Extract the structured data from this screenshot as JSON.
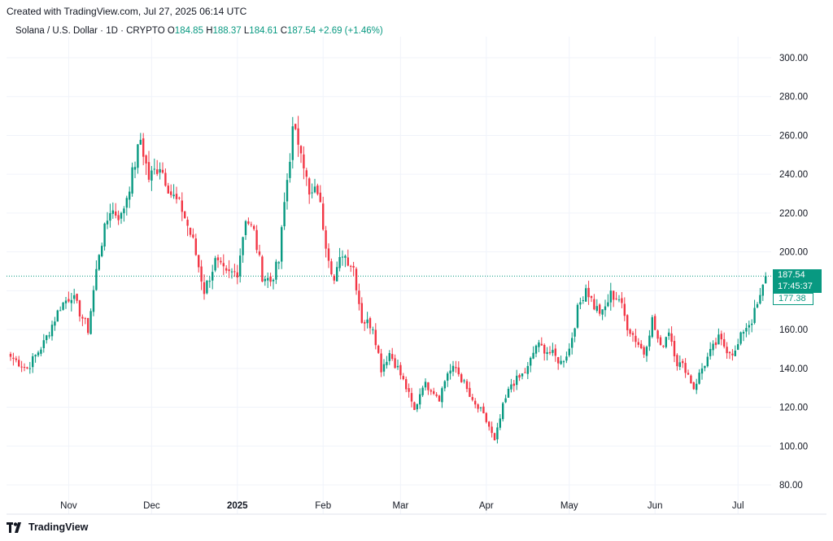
{
  "header": {
    "created_text": "Created with TradingView.com, Jul 27, 2025 06:14 UTC"
  },
  "legend": {
    "symbol": "Solana / U.S. Dollar · 1D · CRYPTO",
    "o_label": "O",
    "o_value": "184.85",
    "h_label": "H",
    "h_value": "188.37",
    "l_label": "L",
    "l_value": "184.61",
    "c_label": "C",
    "c_value": "187.54",
    "change": "+2.69 (+1.46%)"
  },
  "price_label": {
    "price": "187.54",
    "countdown": "17:45:37",
    "secondary": "177.38"
  },
  "footer": {
    "brand": "TradingView"
  },
  "colors": {
    "up": "#089981",
    "down": "#f23645",
    "grid": "#f0f3fa",
    "text": "#131722"
  },
  "chart_data": {
    "type": "candlestick",
    "xlabel": "",
    "ylabel": "",
    "ylim": [
      80,
      300
    ],
    "yticks": [
      "300.00",
      "280.00",
      "260.00",
      "240.00",
      "220.00",
      "200.00",
      "180.00",
      "160.00",
      "140.00",
      "120.00",
      "100.00",
      "80.00"
    ],
    "xticks": [
      {
        "label": "Nov",
        "index": 21,
        "bold": false
      },
      {
        "label": "Dec",
        "index": 51,
        "bold": false
      },
      {
        "label": "2025",
        "index": 82,
        "bold": true
      },
      {
        "label": "Feb",
        "index": 113,
        "bold": false
      },
      {
        "label": "Mar",
        "index": 141,
        "bold": false
      },
      {
        "label": "Apr",
        "index": 172,
        "bold": false
      },
      {
        "label": "May",
        "index": 202,
        "bold": false
      },
      {
        "label": "Jun",
        "index": 233,
        "bold": false
      },
      {
        "label": "Jul",
        "index": 263,
        "bold": false
      }
    ],
    "last_price": 187.54,
    "grid": true,
    "anchors": [
      [
        0,
        146
      ],
      [
        6,
        140
      ],
      [
        12,
        153
      ],
      [
        18,
        172
      ],
      [
        22,
        178
      ],
      [
        28,
        160
      ],
      [
        32,
        200
      ],
      [
        36,
        222
      ],
      [
        40,
        218
      ],
      [
        44,
        240
      ],
      [
        47,
        258
      ],
      [
        50,
        238
      ],
      [
        54,
        245
      ],
      [
        58,
        230
      ],
      [
        62,
        222
      ],
      [
        66,
        205
      ],
      [
        70,
        180
      ],
      [
        74,
        195
      ],
      [
        78,
        188
      ],
      [
        82,
        190
      ],
      [
        85,
        218
      ],
      [
        88,
        210
      ],
      [
        91,
        188
      ],
      [
        94,
        185
      ],
      [
        97,
        195
      ],
      [
        99,
        225
      ],
      [
        102,
        262
      ],
      [
        105,
        255
      ],
      [
        108,
        228
      ],
      [
        111,
        232
      ],
      [
        114,
        205
      ],
      [
        117,
        185
      ],
      [
        120,
        200
      ],
      [
        124,
        192
      ],
      [
        127,
        165
      ],
      [
        131,
        162
      ],
      [
        134,
        140
      ],
      [
        137,
        148
      ],
      [
        140,
        140
      ],
      [
        143,
        130
      ],
      [
        146,
        118
      ],
      [
        149,
        132
      ],
      [
        152,
        130
      ],
      [
        155,
        125
      ],
      [
        158,
        138
      ],
      [
        161,
        140
      ],
      [
        164,
        132
      ],
      [
        167,
        122
      ],
      [
        170,
        118
      ],
      [
        173,
        110
      ],
      [
        175,
        102
      ],
      [
        178,
        120
      ],
      [
        181,
        132
      ],
      [
        184,
        135
      ],
      [
        187,
        140
      ],
      [
        190,
        152
      ],
      [
        193,
        150
      ],
      [
        196,
        147
      ],
      [
        199,
        143
      ],
      [
        202,
        150
      ],
      [
        205,
        170
      ],
      [
        208,
        182
      ],
      [
        211,
        172
      ],
      [
        214,
        168
      ],
      [
        217,
        178
      ],
      [
        220,
        176
      ],
      [
        223,
        162
      ],
      [
        226,
        155
      ],
      [
        229,
        148
      ],
      [
        232,
        165
      ],
      [
        235,
        150
      ],
      [
        238,
        160
      ],
      [
        241,
        143
      ],
      [
        244,
        140
      ],
      [
        247,
        130
      ],
      [
        250,
        140
      ],
      [
        253,
        148
      ],
      [
        256,
        155
      ],
      [
        259,
        150
      ],
      [
        262,
        148
      ],
      [
        265,
        160
      ],
      [
        268,
        165
      ],
      [
        271,
        176
      ],
      [
        273,
        187.54
      ]
    ]
  }
}
